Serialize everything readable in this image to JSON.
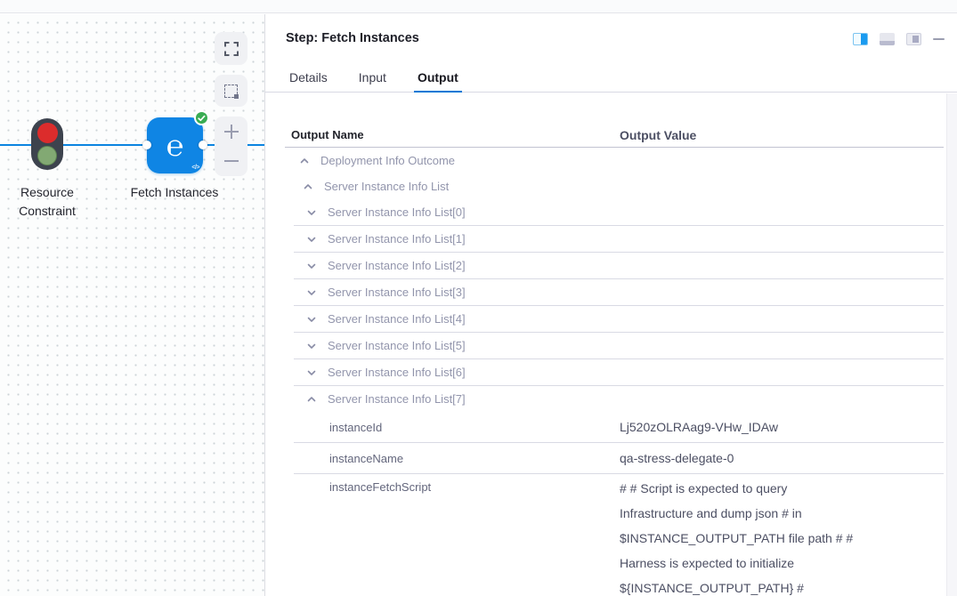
{
  "colors": {
    "accent_blue": "#0278d5",
    "node_blue": "#0f85e4",
    "success_green": "#39ac52",
    "signal_red": "#dc2c2c",
    "signal_green": "#82a973"
  },
  "canvas": {
    "nodes": [
      {
        "id": "resource-constraint",
        "label": "Resource Constraint",
        "icon": "traffic-light-icon"
      },
      {
        "id": "fetch-instances",
        "label": "Fetch Instances",
        "icon": "harness-step-icon",
        "status": "success"
      }
    ],
    "controls": [
      {
        "name": "zoom-to-fit",
        "icon": "expand-icon"
      },
      {
        "name": "marquee-select",
        "icon": "marquee-icon"
      },
      {
        "name": "zoom-in",
        "icon": "plus-icon"
      },
      {
        "name": "zoom-out",
        "icon": "minus-icon"
      }
    ]
  },
  "panel": {
    "title": "Step: Fetch Instances",
    "header_icons": [
      "layout-split-right-active-icon",
      "layout-dock-bottom-icon",
      "layout-dock-right-icon",
      "minimize-icon"
    ],
    "tabs": [
      {
        "label": "Details",
        "active": false
      },
      {
        "label": "Input",
        "active": false
      },
      {
        "label": "Output",
        "active": true
      }
    ],
    "table": {
      "columns": {
        "name": "Output Name",
        "value": "Output Value"
      },
      "rows": [
        {
          "kind": "tree",
          "indent": 0,
          "state": "expanded",
          "label": "Deployment Info Outcome",
          "separator": false
        },
        {
          "kind": "tree",
          "indent": 1,
          "state": "expanded",
          "label": "Server Instance Info List",
          "separator": false
        },
        {
          "kind": "tree",
          "indent": 2,
          "state": "collapsed",
          "label": "Server Instance Info List[0]",
          "separator": true
        },
        {
          "kind": "tree",
          "indent": 2,
          "state": "collapsed",
          "label": "Server Instance Info List[1]",
          "separator": true
        },
        {
          "kind": "tree",
          "indent": 2,
          "state": "collapsed",
          "label": "Server Instance Info List[2]",
          "separator": true
        },
        {
          "kind": "tree",
          "indent": 2,
          "state": "collapsed",
          "label": "Server Instance Info List[3]",
          "separator": true
        },
        {
          "kind": "tree",
          "indent": 2,
          "state": "collapsed",
          "label": "Server Instance Info List[4]",
          "separator": true
        },
        {
          "kind": "tree",
          "indent": 2,
          "state": "collapsed",
          "label": "Server Instance Info List[5]",
          "separator": true
        },
        {
          "kind": "tree",
          "indent": 2,
          "state": "collapsed",
          "label": "Server Instance Info List[6]",
          "separator": true
        },
        {
          "kind": "tree",
          "indent": 2,
          "state": "expanded",
          "label": "Server Instance Info List[7]",
          "separator": false
        },
        {
          "kind": "leaf",
          "label": "instanceId",
          "value": "Lj520zOLRAag9-VHw_IDAw",
          "separator": true
        },
        {
          "kind": "leaf",
          "label": "instanceName",
          "value": "qa-stress-delegate-0",
          "separator": true
        },
        {
          "kind": "leaf",
          "label": "instanceFetchScript",
          "value_lines": [
            "# # Script is expected to query",
            "Infrastructure and dump json # in",
            "$INSTANCE_OUTPUT_PATH file path # #",
            "Harness is expected to initialize",
            "${INSTANCE_OUTPUT_PATH} #"
          ],
          "separator": false
        }
      ]
    }
  }
}
